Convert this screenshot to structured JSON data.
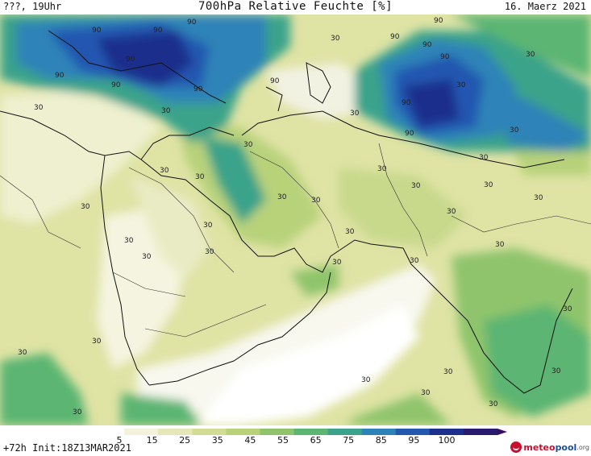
{
  "header": {
    "location": "???, 19Uhr",
    "title": "700hPa Relative Feuchte [%]",
    "date": "16. Maerz 2021"
  },
  "map": {
    "contour_labels": [
      "90",
      "90",
      "90",
      "90",
      "90",
      "90",
      "90",
      "90",
      "90",
      "90",
      "90",
      "90",
      "90",
      "90",
      "30",
      "30",
      "30",
      "30",
      "30",
      "30",
      "30",
      "30",
      "30",
      "30",
      "30",
      "30",
      "30",
      "30",
      "30",
      "30",
      "30",
      "30",
      "30",
      "30",
      "30",
      "30",
      "30",
      "30",
      "30",
      "30",
      "30",
      "30",
      "30",
      "30",
      "30",
      "30",
      "30",
      "30",
      "30",
      "30"
    ]
  },
  "colorbar": {
    "ticks": [
      "5",
      "15",
      "25",
      "35",
      "45",
      "55",
      "65",
      "75",
      "85",
      "95",
      "100"
    ],
    "colors": [
      "#ffffff",
      "#f4f2dc",
      "#e6e7b8",
      "#d3dc95",
      "#b8d27a",
      "#8fc46c",
      "#5cb572",
      "#3aa38a",
      "#2d83b8",
      "#2457b0",
      "#1c2f8c",
      "#2a1a6e"
    ]
  },
  "footer": {
    "init": "+72h Init:18Z13MAR2021",
    "brand_part1": "meteo",
    "brand_part2": "pool",
    "brand_part3": ".org"
  }
}
